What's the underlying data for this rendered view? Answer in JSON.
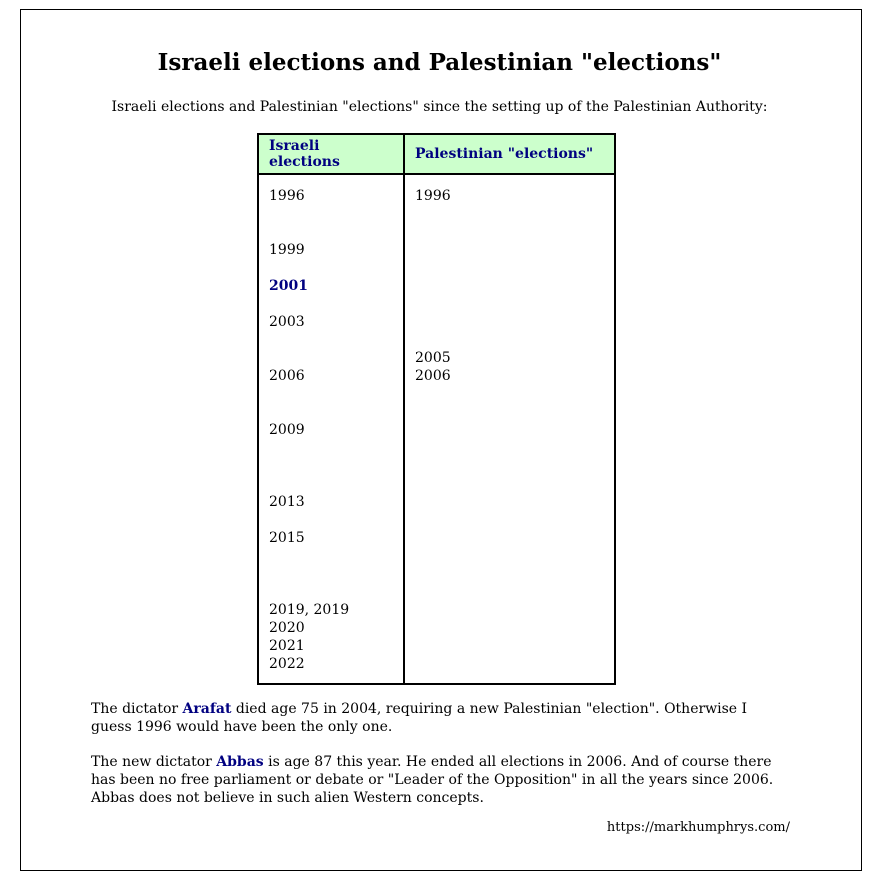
{
  "title": "Israeli elections and Palestinian \"elections\"",
  "subtitle": "Israeli elections and Palestinian \"elections\" since the setting up of the Palestinian Authority:",
  "table": {
    "headers": [
      "Israeli elections",
      "Palestinian \"elections\""
    ],
    "israeli": [
      "1996",
      "",
      "",
      "1999",
      "",
      "2001",
      "",
      "2003",
      "",
      "",
      "2006",
      "",
      "",
      "2009",
      "",
      "",
      "",
      "2013",
      "",
      "2015",
      "",
      "",
      "",
      "2019, 2019",
      "2020",
      "2021",
      "2022"
    ],
    "palestinian": [
      "1996",
      "",
      "",
      "",
      "",
      "",
      "",
      "",
      "",
      "2005",
      "2006"
    ]
  },
  "para1": {
    "before": "The dictator ",
    "link": "Arafat",
    "after": " died age 75 in 2004, requiring a new Palestinian \"election\". Otherwise I guess 1996 would have been the only one."
  },
  "para2": {
    "before": "The new dictator ",
    "link": "Abbas",
    "after": " is age 87 this year. He ended all elections in 2006. And of course there has been no free parliament or debate or \"Leader of the Opposition\" in all the years since 2006. Abbas does not believe in such alien Western concepts."
  },
  "footer_url": "https://markhumphrys.com/"
}
